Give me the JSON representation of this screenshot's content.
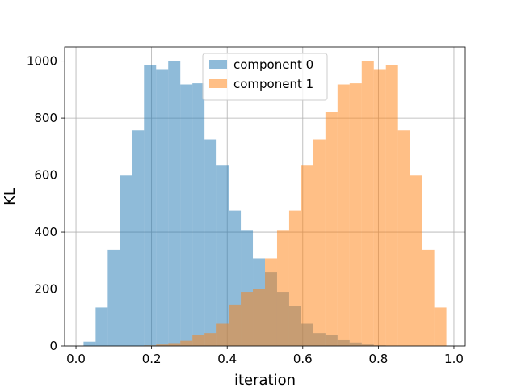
{
  "chart_data": {
    "type": "histogram",
    "xlabel": "iteration",
    "ylabel": "KL",
    "xlim": [
      -0.03,
      1.03
    ],
    "ylim": [
      0,
      1050
    ],
    "xticks": [
      0.0,
      0.2,
      0.4,
      0.6,
      0.8,
      1.0
    ],
    "xtick_labels": [
      "0.0",
      "0.2",
      "0.4",
      "0.6",
      "0.8",
      "1.0"
    ],
    "yticks": [
      0,
      200,
      400,
      600,
      800,
      1000
    ],
    "ytick_labels": [
      "0",
      "200",
      "400",
      "600",
      "800",
      "1000"
    ],
    "grid": true,
    "legend_position": "upper-center",
    "series": [
      {
        "name": "component 0",
        "color": "#1f77b4",
        "alpha": 0.5,
        "bins": [
          {
            "x0": 0.02,
            "x1": 0.052,
            "y": 15
          },
          {
            "x0": 0.052,
            "x1": 0.084,
            "y": 135
          },
          {
            "x0": 0.084,
            "x1": 0.116,
            "y": 338
          },
          {
            "x0": 0.116,
            "x1": 0.148,
            "y": 598
          },
          {
            "x0": 0.148,
            "x1": 0.18,
            "y": 757
          },
          {
            "x0": 0.18,
            "x1": 0.212,
            "y": 985
          },
          {
            "x0": 0.212,
            "x1": 0.244,
            "y": 972
          },
          {
            "x0": 0.244,
            "x1": 0.276,
            "y": 1000
          },
          {
            "x0": 0.276,
            "x1": 0.308,
            "y": 918
          },
          {
            "x0": 0.308,
            "x1": 0.34,
            "y": 922
          },
          {
            "x0": 0.34,
            "x1": 0.372,
            "y": 725
          },
          {
            "x0": 0.372,
            "x1": 0.404,
            "y": 635
          },
          {
            "x0": 0.404,
            "x1": 0.436,
            "y": 475
          },
          {
            "x0": 0.436,
            "x1": 0.468,
            "y": 405
          },
          {
            "x0": 0.468,
            "x1": 0.5,
            "y": 308
          },
          {
            "x0": 0.5,
            "x1": 0.532,
            "y": 258
          },
          {
            "x0": 0.532,
            "x1": 0.564,
            "y": 190
          },
          {
            "x0": 0.564,
            "x1": 0.596,
            "y": 140
          },
          {
            "x0": 0.596,
            "x1": 0.628,
            "y": 78
          },
          {
            "x0": 0.628,
            "x1": 0.66,
            "y": 45
          },
          {
            "x0": 0.66,
            "x1": 0.692,
            "y": 38
          },
          {
            "x0": 0.692,
            "x1": 0.724,
            "y": 20
          },
          {
            "x0": 0.724,
            "x1": 0.756,
            "y": 12
          },
          {
            "x0": 0.756,
            "x1": 0.788,
            "y": 5
          },
          {
            "x0": 0.788,
            "x1": 0.82,
            "y": 2
          }
        ]
      },
      {
        "name": "component 1",
        "color": "#ff7f0e",
        "alpha": 0.5,
        "bins": [
          {
            "x0": 0.18,
            "x1": 0.212,
            "y": 2
          },
          {
            "x0": 0.212,
            "x1": 0.244,
            "y": 5
          },
          {
            "x0": 0.244,
            "x1": 0.276,
            "y": 10
          },
          {
            "x0": 0.276,
            "x1": 0.308,
            "y": 18
          },
          {
            "x0": 0.308,
            "x1": 0.34,
            "y": 38
          },
          {
            "x0": 0.34,
            "x1": 0.372,
            "y": 45
          },
          {
            "x0": 0.372,
            "x1": 0.404,
            "y": 78
          },
          {
            "x0": 0.404,
            "x1": 0.436,
            "y": 145
          },
          {
            "x0": 0.436,
            "x1": 0.468,
            "y": 190
          },
          {
            "x0": 0.468,
            "x1": 0.5,
            "y": 200
          },
          {
            "x0": 0.5,
            "x1": 0.532,
            "y": 308
          },
          {
            "x0": 0.532,
            "x1": 0.564,
            "y": 405
          },
          {
            "x0": 0.564,
            "x1": 0.596,
            "y": 475
          },
          {
            "x0": 0.596,
            "x1": 0.628,
            "y": 635
          },
          {
            "x0": 0.628,
            "x1": 0.66,
            "y": 725
          },
          {
            "x0": 0.66,
            "x1": 0.692,
            "y": 822
          },
          {
            "x0": 0.692,
            "x1": 0.724,
            "y": 918
          },
          {
            "x0": 0.724,
            "x1": 0.756,
            "y": 922
          },
          {
            "x0": 0.756,
            "x1": 0.788,
            "y": 1000
          },
          {
            "x0": 0.788,
            "x1": 0.82,
            "y": 972
          },
          {
            "x0": 0.82,
            "x1": 0.852,
            "y": 985
          },
          {
            "x0": 0.852,
            "x1": 0.884,
            "y": 757
          },
          {
            "x0": 0.884,
            "x1": 0.916,
            "y": 598
          },
          {
            "x0": 0.916,
            "x1": 0.948,
            "y": 338
          },
          {
            "x0": 0.948,
            "x1": 0.98,
            "y": 135
          }
        ]
      }
    ]
  }
}
